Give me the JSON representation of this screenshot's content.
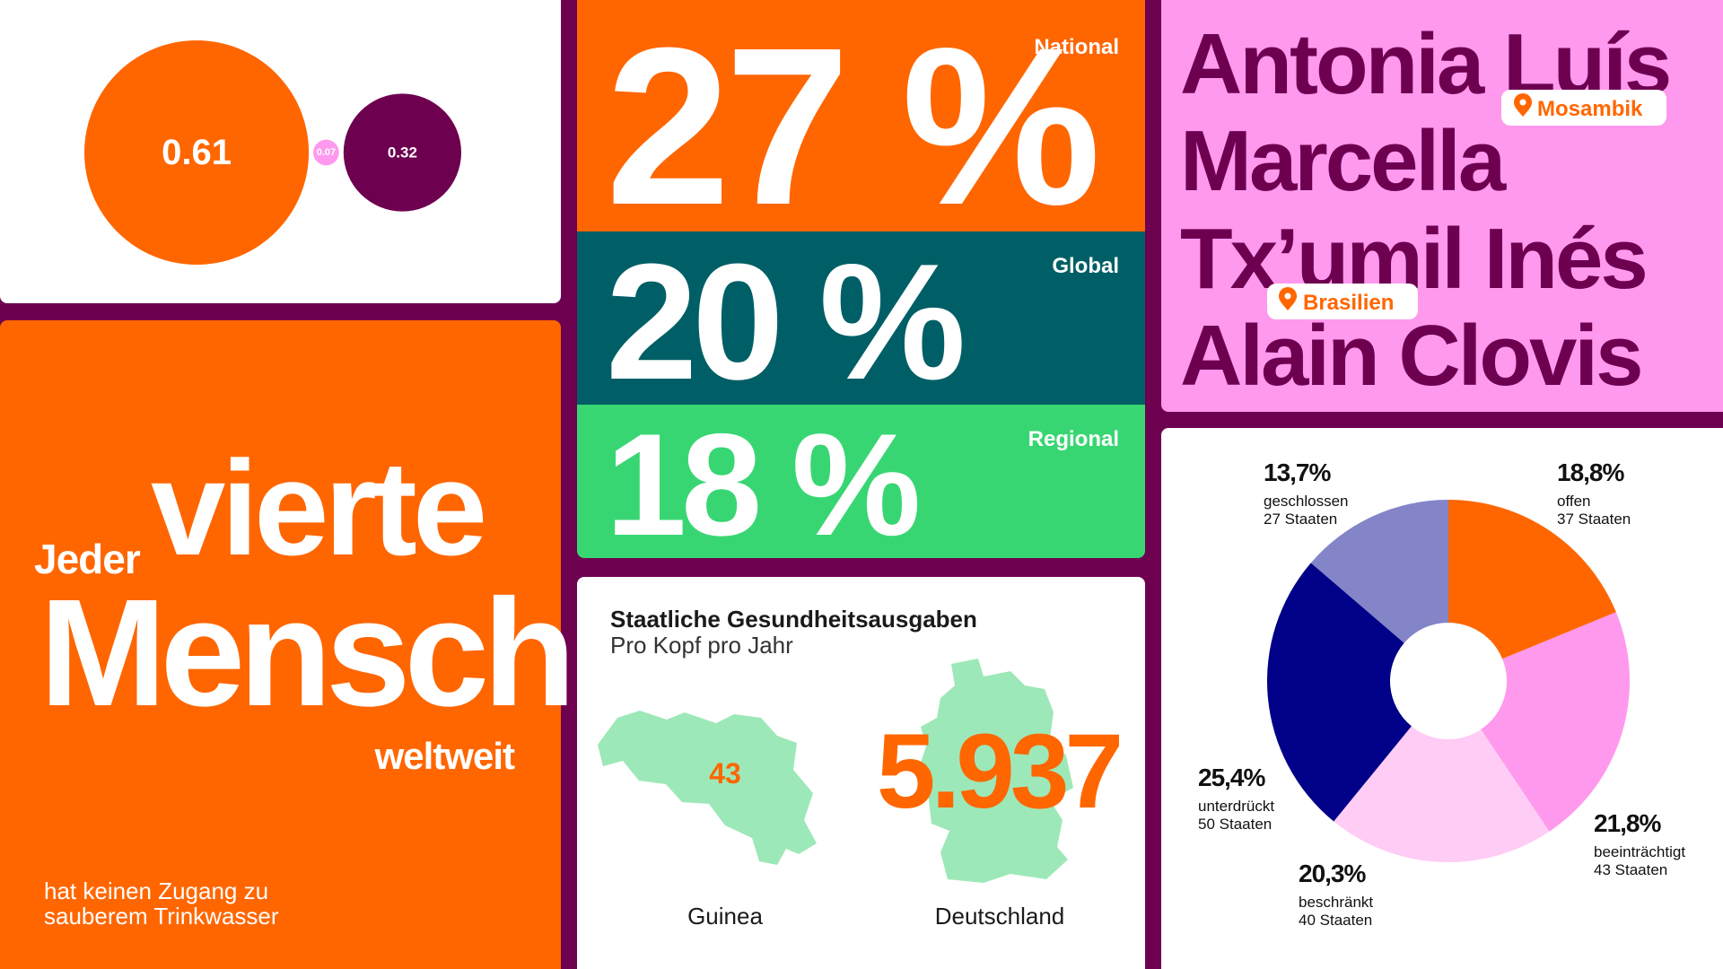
{
  "stats_panel": {
    "items": [
      {
        "value": "27 %",
        "label": "National"
      },
      {
        "value": "20 %",
        "label": "Global"
      },
      {
        "value": "18 %",
        "label": "Regional"
      }
    ]
  },
  "names_panel": {
    "names": [
      "Antonia Luís",
      "Marcella",
      "Tx’umil Inés",
      "Alain Clovis"
    ],
    "tags": [
      "Mosambik",
      "Brasilien"
    ]
  },
  "headline": {
    "pre": "Jeder",
    "big1": "vierte",
    "big2": "Mensch",
    "post": "weltweit",
    "note_lines": [
      "hat keinen Zugang zu",
      "sauberem Trinkwasser"
    ]
  },
  "spending": {
    "title": "Staatliche Gesundheitsausgaben",
    "subtitle": "Pro Kopf pro Jahr",
    "countries": [
      {
        "name": "Guinea",
        "amount": "43"
      },
      {
        "name": "Deutschland",
        "amount": "5.937"
      }
    ]
  },
  "chart_data": [
    {
      "type": "bubble",
      "values": [
        0.61,
        0.07,
        0.32
      ],
      "colors": [
        "#ff6600",
        "#ff99ee",
        "#6e0050"
      ]
    },
    {
      "type": "donut",
      "categories": [
        "offen",
        "beeinträchtigt",
        "beschränkt",
        "unterdrückt",
        "geschlossen"
      ],
      "values": [
        18.8,
        21.8,
        20.3,
        25.4,
        13.7
      ],
      "value_labels": [
        "18,8%",
        "21,8%",
        "20,3%",
        "25,4%",
        "13,7%"
      ],
      "sublabels": [
        "37 Staaten",
        "43 Staaten",
        "40 Staaten",
        "50 Staaten",
        "27 Staaten"
      ],
      "colors": [
        "#ff6600",
        "#ff99ee",
        "#ffccf5",
        "#000088",
        "#8484c8"
      ]
    }
  ]
}
